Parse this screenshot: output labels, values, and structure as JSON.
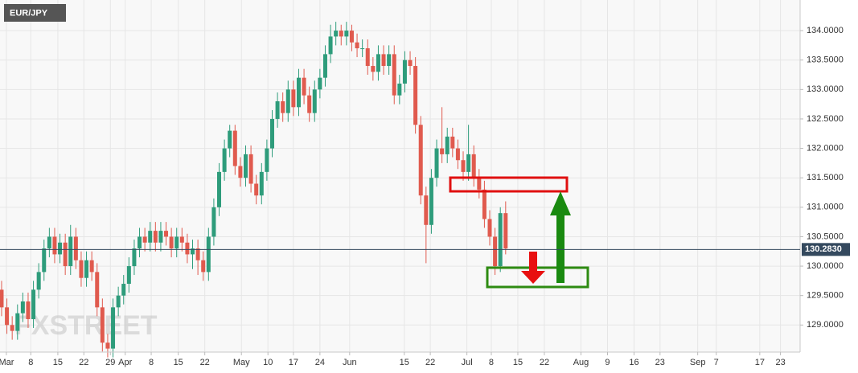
{
  "chart_data": {
    "type": "candlestick",
    "title": "EUR/JPY",
    "watermark": "FXSTREET",
    "up_color": "#2e9c7b",
    "down_color": "#e05a4e",
    "grid": true,
    "ylim": [
      128.54,
      134.52
    ],
    "xlim": [
      -0.3,
      150.5
    ],
    "yticks": [
      {
        "value": 129.0,
        "label": "129.0000"
      },
      {
        "value": 129.5,
        "label": "129.5000"
      },
      {
        "value": 130.0,
        "label": "130.0000"
      },
      {
        "value": 130.5,
        "label": "130.5000"
      },
      {
        "value": 131.0,
        "label": "131.0000"
      },
      {
        "value": 131.5,
        "label": "131.5000"
      },
      {
        "value": 132.0,
        "label": "132.0000"
      },
      {
        "value": 132.5,
        "label": "132.5000"
      },
      {
        "value": 133.0,
        "label": "133.0000"
      },
      {
        "value": 133.5,
        "label": "133.5000"
      },
      {
        "value": 134.0,
        "label": "134.0000"
      }
    ],
    "xticks": [
      {
        "value": 0.9,
        "label": "Mar"
      },
      {
        "value": 5.5,
        "label": "8"
      },
      {
        "value": 10.6,
        "label": "15"
      },
      {
        "value": 15.5,
        "label": "22"
      },
      {
        "value": 20.5,
        "label": "29"
      },
      {
        "value": 23.3,
        "label": "Apr"
      },
      {
        "value": 28.2,
        "label": "8"
      },
      {
        "value": 33.3,
        "label": "15"
      },
      {
        "value": 38.3,
        "label": "22"
      },
      {
        "value": 45.2,
        "label": "May"
      },
      {
        "value": 50.2,
        "label": "10"
      },
      {
        "value": 55.0,
        "label": "17"
      },
      {
        "value": 60.0,
        "label": "24"
      },
      {
        "value": 65.6,
        "label": "Jun"
      },
      {
        "value": 75.9,
        "label": "15"
      },
      {
        "value": 80.8,
        "label": "22"
      },
      {
        "value": 87.7,
        "label": "Jul"
      },
      {
        "value": 92.3,
        "label": "8"
      },
      {
        "value": 97.3,
        "label": "15"
      },
      {
        "value": 102.3,
        "label": "22"
      },
      {
        "value": 109.2,
        "label": "Aug"
      },
      {
        "value": 114.2,
        "label": "9"
      },
      {
        "value": 119.2,
        "label": "16"
      },
      {
        "value": 124.1,
        "label": "23"
      },
      {
        "value": 131.2,
        "label": "Sep"
      },
      {
        "value": 134.7,
        "label": "7"
      },
      {
        "value": 142.9,
        "label": "17"
      },
      {
        "value": 146.8,
        "label": "23"
      }
    ],
    "last_price": {
      "value": 130.283,
      "label": "130.2830"
    },
    "open": [
      129.6,
      129.3,
      129.0,
      128.9,
      129.2,
      129.4,
      129.1,
      129.6,
      129.9,
      130.3,
      130.5,
      130.2,
      130.4,
      130.0,
      130.5,
      130.1,
      129.8,
      130.1,
      129.9,
      129.3,
      128.7,
      128.6,
      129.3,
      129.5,
      129.7,
      130.0,
      130.3,
      130.5,
      130.4,
      130.6,
      130.4,
      130.6,
      130.5,
      130.3,
      130.5,
      130.4,
      130.2,
      130.3,
      130.1,
      129.9,
      130.5,
      131.0,
      131.6,
      132.0,
      132.3,
      131.7,
      131.5,
      131.9,
      131.4,
      131.2,
      131.6,
      132.0,
      132.5,
      132.8,
      132.6,
      133.0,
      132.7,
      133.2,
      132.9,
      132.6,
      133.0,
      133.2,
      133.6,
      133.9,
      134.0,
      133.9,
      134.0,
      133.8,
      133.7,
      133.7,
      133.4,
      133.3,
      133.6,
      133.4,
      133.6,
      132.9,
      133.1,
      133.5,
      133.4,
      132.4,
      131.2,
      130.7,
      131.5,
      132.0,
      131.9,
      132.2,
      132.0,
      131.8,
      131.6,
      131.9,
      131.5,
      131.3,
      130.8,
      130.5,
      130.0,
      130.9
    ],
    "high": [
      129.75,
      129.45,
      129.15,
      129.35,
      129.55,
      129.55,
      129.75,
      130.05,
      130.45,
      130.65,
      130.65,
      130.55,
      130.55,
      130.7,
      130.65,
      130.25,
      130.25,
      130.25,
      130.05,
      129.45,
      128.85,
      129.45,
      129.65,
      129.85,
      130.15,
      130.45,
      130.65,
      130.65,
      130.75,
      130.75,
      130.75,
      130.75,
      130.65,
      130.65,
      130.65,
      130.55,
      130.45,
      130.45,
      130.25,
      130.65,
      131.15,
      131.75,
      132.15,
      132.4,
      132.4,
      131.85,
      132.05,
      132.05,
      131.55,
      131.75,
      132.15,
      132.65,
      132.95,
      132.95,
      133.15,
      133.15,
      133.35,
      133.35,
      133.05,
      133.15,
      133.35,
      133.75,
      134.1,
      134.15,
      134.1,
      134.15,
      134.1,
      133.95,
      133.85,
      133.85,
      133.55,
      133.75,
      133.75,
      133.75,
      133.75,
      133.25,
      133.65,
      133.65,
      133.55,
      132.55,
      131.35,
      131.65,
      132.15,
      132.7,
      132.35,
      132.35,
      132.15,
      131.95,
      132.4,
      132.05,
      131.65,
      131.45,
      130.95,
      130.65,
      131.0,
      131.1
    ],
    "low": [
      129.15,
      128.85,
      128.75,
      128.75,
      129.05,
      128.95,
      128.95,
      129.45,
      129.75,
      130.15,
      130.05,
      130.05,
      129.85,
      129.85,
      129.95,
      129.65,
      129.65,
      129.75,
      129.15,
      128.55,
      128.45,
      128.45,
      129.15,
      129.35,
      129.55,
      129.85,
      130.15,
      130.25,
      130.25,
      130.25,
      130.25,
      130.35,
      130.15,
      130.15,
      130.25,
      130.05,
      129.95,
      129.85,
      129.75,
      129.75,
      130.35,
      130.85,
      131.45,
      131.85,
      131.55,
      131.35,
      131.35,
      131.25,
      131.05,
      131.05,
      131.45,
      131.85,
      132.35,
      132.45,
      132.45,
      132.55,
      132.55,
      132.75,
      132.45,
      132.45,
      132.85,
      133.05,
      133.45,
      133.75,
      133.75,
      133.75,
      133.65,
      133.55,
      133.55,
      133.25,
      133.15,
      133.15,
      133.25,
      133.25,
      132.75,
      132.75,
      132.95,
      133.25,
      132.25,
      131.05,
      130.05,
      130.55,
      131.35,
      131.75,
      131.75,
      131.85,
      131.65,
      131.45,
      131.45,
      131.35,
      131.15,
      130.65,
      130.35,
      129.85,
      129.9,
      130.2
    ],
    "close": [
      129.3,
      129.0,
      128.9,
      129.2,
      129.4,
      129.1,
      129.6,
      129.9,
      130.3,
      130.5,
      130.2,
      130.4,
      130.0,
      130.5,
      130.1,
      129.8,
      130.1,
      129.9,
      129.3,
      128.7,
      128.6,
      129.3,
      129.5,
      129.7,
      130.0,
      130.3,
      130.5,
      130.4,
      130.6,
      130.4,
      130.6,
      130.5,
      130.3,
      130.5,
      130.4,
      130.2,
      130.3,
      130.1,
      129.9,
      130.5,
      131.0,
      131.6,
      132.0,
      132.3,
      131.7,
      131.5,
      131.9,
      131.4,
      131.2,
      131.6,
      132.0,
      132.5,
      132.8,
      132.6,
      133.0,
      132.7,
      133.2,
      132.9,
      132.6,
      133.0,
      133.2,
      133.6,
      133.9,
      134.0,
      133.9,
      134.0,
      133.8,
      133.7,
      133.7,
      133.4,
      133.3,
      133.6,
      133.4,
      133.6,
      132.9,
      133.1,
      133.5,
      133.4,
      132.4,
      131.2,
      130.7,
      131.5,
      132.0,
      131.9,
      132.2,
      132.0,
      131.8,
      131.6,
      131.9,
      131.5,
      131.3,
      130.8,
      130.5,
      130.0,
      130.9,
      130.3
    ]
  }
}
